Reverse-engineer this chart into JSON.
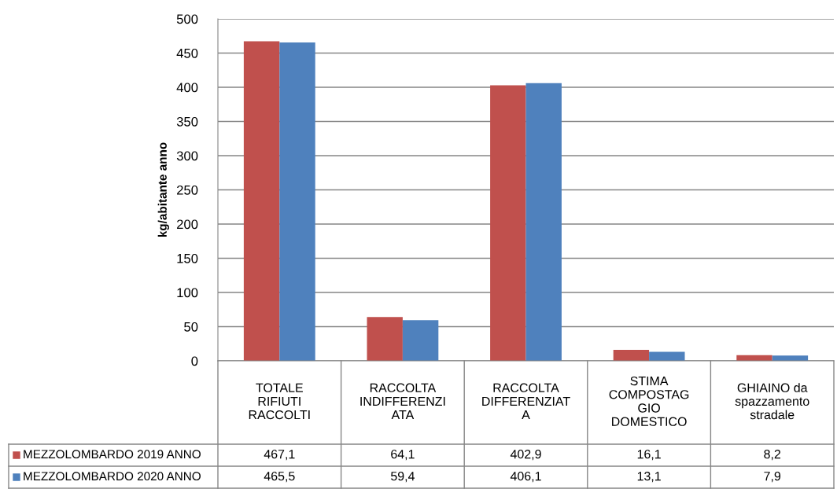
{
  "chart_data": {
    "type": "bar",
    "ylabel": "kg/abitante anno",
    "categories": [
      "TOTALE\nRIFIUTI\nRACCOLTI",
      "RACCOLTA\nINDIFFERENZI\nATA",
      "RACCOLTA\nDIFFERENZIAT\nA",
      "STIMA\nCOMPOSTAG\nGIO\nDOMESTICO",
      "GHIAINO da\nspazzamento\nstradale"
    ],
    "series": [
      {
        "name": "MEZZOLOMBARDO 2019 ANNO",
        "color": "#c0504d",
        "values": [
          467.1,
          64.1,
          402.9,
          16.1,
          8.2
        ],
        "value_labels": [
          "467,1",
          "64,1",
          "402,9",
          "16,1",
          "8,2"
        ]
      },
      {
        "name": "MEZZOLOMBARDO 2020 ANNO",
        "color": "#4f81bd",
        "values": [
          465.5,
          59.4,
          406.1,
          13.1,
          7.9
        ],
        "value_labels": [
          "465,5",
          "59,4",
          "406,1",
          "13,1",
          "7,9"
        ]
      }
    ],
    "ylim": [
      0,
      500
    ],
    "yticks": [
      0,
      50,
      100,
      150,
      200,
      250,
      300,
      350,
      400,
      450,
      500
    ],
    "grid": "y",
    "legend": "bottom"
  }
}
